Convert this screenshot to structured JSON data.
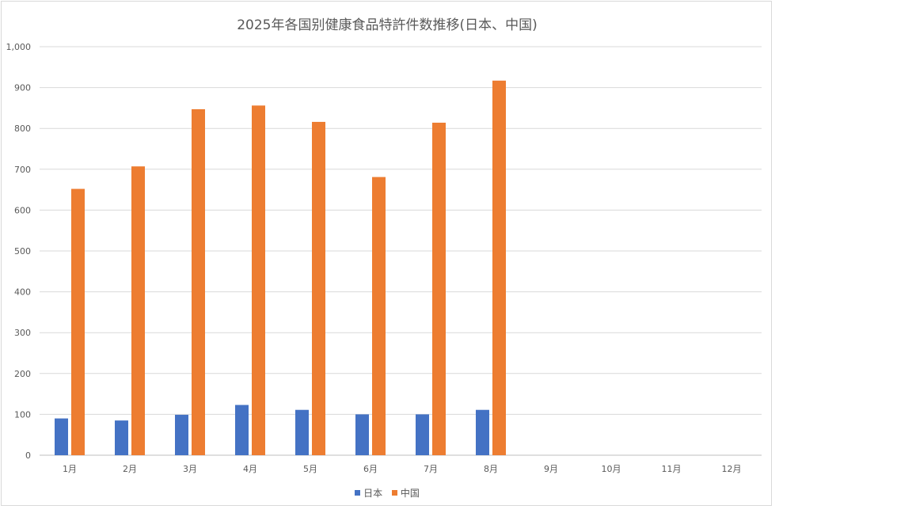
{
  "chart_data": {
    "type": "bar",
    "title": "2025年各国别健康食品特許件数推移(日本、中国)",
    "categories": [
      "1月",
      "2月",
      "3月",
      "4月",
      "5月",
      "6月",
      "7月",
      "8月",
      "9月",
      "10月",
      "11月",
      "12月"
    ],
    "series": [
      {
        "name": "日本",
        "color": "#4472c4",
        "values": [
          90,
          85,
          99,
          123,
          111,
          100,
          100,
          111,
          null,
          null,
          null,
          null
        ]
      },
      {
        "name": "中国",
        "color": "#ed7d31",
        "values": [
          652,
          707,
          847,
          856,
          816,
          681,
          814,
          917,
          null,
          null,
          null,
          null
        ]
      }
    ],
    "ylim": [
      0,
      1000
    ],
    "yticks": [
      "0",
      "100",
      "200",
      "300",
      "400",
      "500",
      "600",
      "700",
      "800",
      "900",
      "1,000"
    ],
    "grid": true,
    "legend": "bottom"
  }
}
